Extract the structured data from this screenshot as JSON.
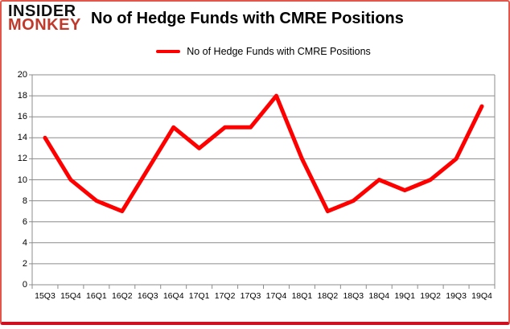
{
  "logo": {
    "line1": "INSIDER",
    "line2": "MONKEY"
  },
  "header": {
    "title": "No of Hedge Funds with CMRE Positions"
  },
  "legend": {
    "label": "No of Hedge Funds with CMRE Positions"
  },
  "colors": {
    "line": "#ff0000",
    "grid": "#8c8c8c",
    "logo_black": "#111111",
    "logo_red": "#c0392b",
    "frame_red": "#cf1020",
    "text": "#000000"
  },
  "chart_data": {
    "type": "line",
    "title": "No of Hedge Funds with CMRE Positions",
    "categories": [
      "15Q3",
      "15Q4",
      "16Q1",
      "16Q2",
      "16Q3",
      "16Q4",
      "17Q1",
      "17Q2",
      "17Q3",
      "17Q4",
      "18Q1",
      "18Q2",
      "18Q3",
      "18Q4",
      "19Q1",
      "19Q2",
      "19Q3",
      "19Q4"
    ],
    "series": [
      {
        "name": "No of Hedge Funds with CMRE Positions",
        "values": [
          14,
          10,
          8,
          7,
          11,
          15,
          13,
          15,
          15,
          18,
          12,
          7,
          8,
          10,
          9,
          10,
          12,
          17
        ]
      }
    ],
    "xlabel": "",
    "ylabel": "",
    "ylim": [
      0,
      20
    ],
    "yticks": [
      0,
      2,
      4,
      6,
      8,
      10,
      12,
      14,
      16,
      18,
      20
    ],
    "grid": true,
    "legend_position": "top-center"
  }
}
